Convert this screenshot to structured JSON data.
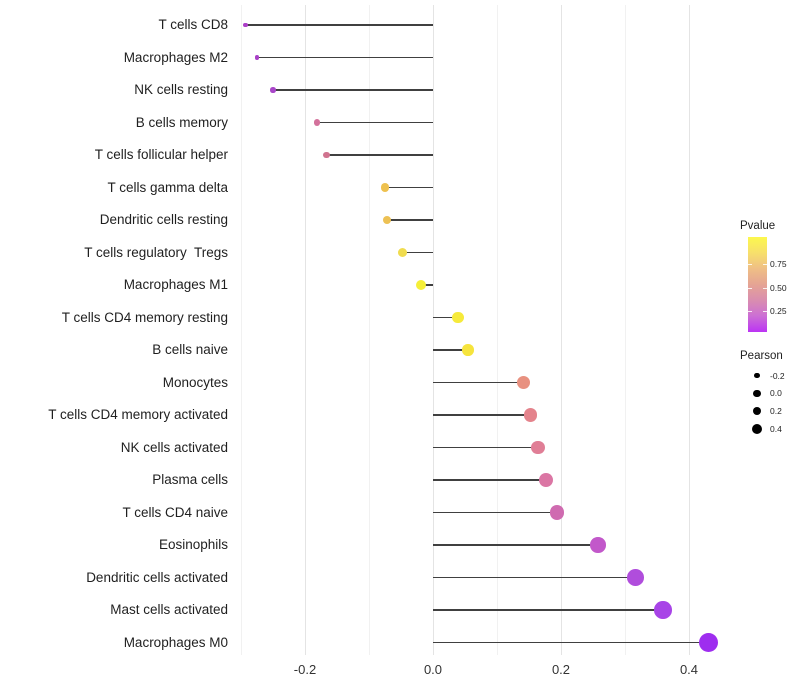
{
  "chart_data": {
    "type": "scatter",
    "style": "horizontal-lollipop",
    "title": "",
    "xlabel": "",
    "ylabel": "",
    "categories": [
      "T cells CD8",
      "Macrophages M2",
      "NK cells resting",
      "B cells memory",
      "T cells follicular helper",
      "T cells gamma delta",
      "Dendritic cells resting",
      "T cells regulatory  Tregs",
      "Macrophages M1",
      "T cells CD4 memory resting",
      "B cells naive",
      "Monocytes",
      "T cells CD4 memory activated",
      "NK cells activated",
      "Plasma cells",
      "T cells CD4 naive",
      "Eosinophils",
      "Dendritic cells activated",
      "Mast cells activated",
      "Macrophages M0"
    ],
    "series": [
      {
        "name": "Pearson",
        "values": [
          -0.293,
          -0.275,
          -0.25,
          -0.181,
          -0.167,
          -0.075,
          -0.072,
          -0.048,
          -0.019,
          0.039,
          0.055,
          0.141,
          0.152,
          0.164,
          0.177,
          0.194,
          0.258,
          0.317,
          0.359,
          0.431
        ]
      }
    ],
    "point_colors": [
      "#AC40C8",
      "#A940C7",
      "#A946C9",
      "#D3719B",
      "#D0738F",
      "#EEC14F",
      "#EDC154",
      "#F0DC4F",
      "#F5EF38",
      "#F6EA3B",
      "#F6E43D",
      "#E89180",
      "#E4838C",
      "#E07E96",
      "#DB76A4",
      "#CF6BB0",
      "#C258CA",
      "#B04DDC",
      "#A844E7",
      "#9E2DEF"
    ],
    "xlim": [
      -0.3125,
      0.475
    ],
    "x_ticks_major": {
      "values": [
        -0.2,
        0.0,
        0.2,
        0.4
      ],
      "labels": [
        "-0.2",
        "0.0",
        "0.2",
        "0.4"
      ]
    },
    "x_ticks_minor": [
      -0.3,
      -0.1,
      0.1,
      0.3
    ],
    "grid": "vertical-only",
    "colors": {
      "background": "#FFFFFF",
      "grid_major": "#E4E4E4",
      "grid_minor": "#F1F1F1",
      "stem": "#404040",
      "axis_text": "#333333",
      "category_text": "#1F1F1F"
    },
    "legend": {
      "position": "right",
      "pvalue": {
        "title": "Pvalue",
        "tick_labels": [
          "0.75",
          "0.50",
          "0.25"
        ],
        "gradient_top_to_bottom": [
          "#FCF84D",
          "#F7DF6C",
          "#EFBF85",
          "#E5A494",
          "#D98DB0",
          "#CC6FD4",
          "#BC34F4"
        ]
      },
      "pearson": {
        "title": "Pearson",
        "labels": [
          "-0.2",
          "0.0",
          "0.2",
          "0.4"
        ],
        "dot_color": "#000000"
      }
    }
  }
}
